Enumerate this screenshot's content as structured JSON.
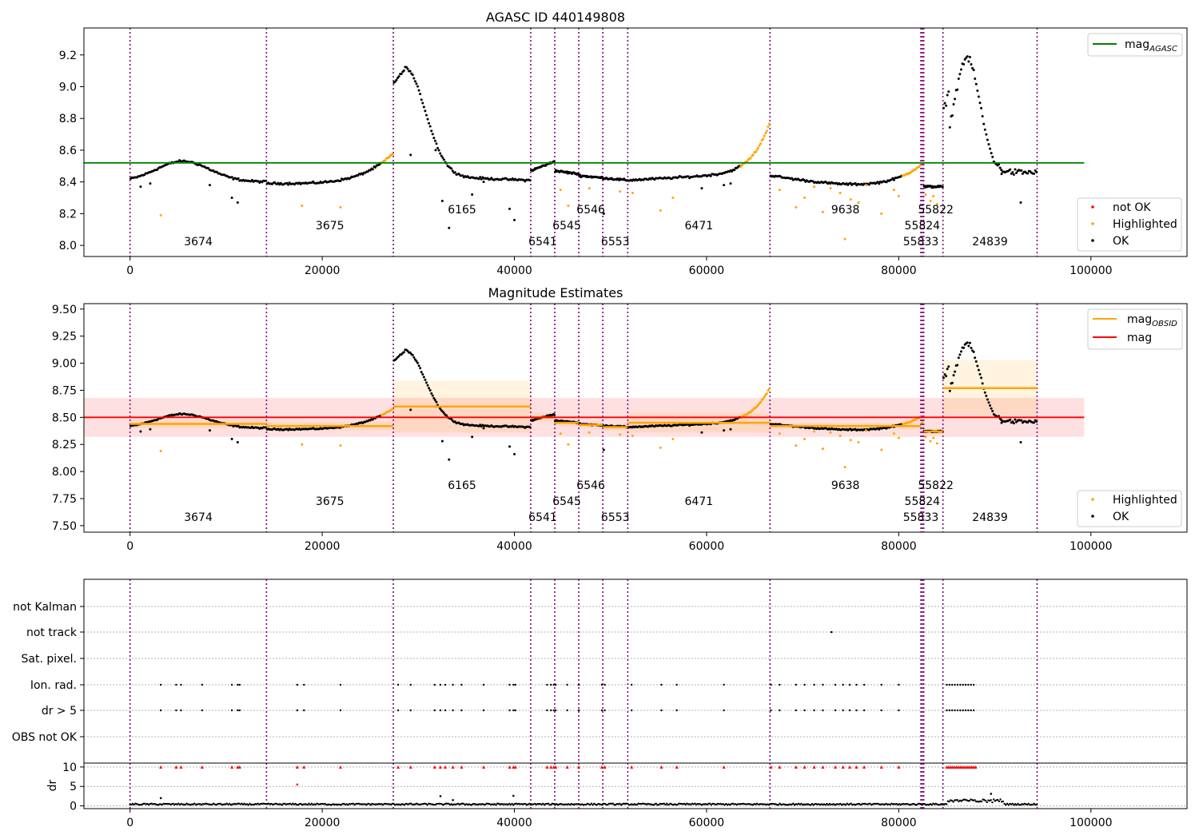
{
  "chart_data": [
    {
      "type": "scatter",
      "title": "AGASC ID 440149808",
      "xlim": [
        -4800,
        110000
      ],
      "ylim": [
        7.93,
        9.37
      ],
      "xticks": [
        0,
        20000,
        40000,
        60000,
        80000,
        100000
      ],
      "yticks": [
        8.0,
        8.2,
        8.4,
        8.6,
        8.8,
        9.0,
        9.2
      ],
      "legend_lines": [
        {
          "name": "mag_AGASC",
          "label": "mag",
          "sub": "AGASC",
          "color": "#008000"
        }
      ],
      "legend_points": [
        {
          "name": "not OK",
          "color": "#ff0000"
        },
        {
          "name": "Highlighted",
          "color": "#ffa500"
        },
        {
          "name": "OK",
          "color": "#000000"
        }
      ],
      "hline": {
        "y": 8.52,
        "x": [
          -4800,
          99300
        ],
        "color": "#008000"
      }
    },
    {
      "type": "scatter",
      "title": "Magnitude Estimates",
      "xlim": [
        -4800,
        110000
      ],
      "ylim": [
        7.44,
        9.55
      ],
      "xticks": [
        0,
        20000,
        40000,
        60000,
        80000,
        100000
      ],
      "yticks": [
        7.5,
        7.75,
        8.0,
        8.25,
        8.5,
        8.75,
        9.0,
        9.25,
        9.5
      ],
      "legend_lines": [
        {
          "name": "mag_OBSID",
          "label": "mag",
          "sub": "OBSID",
          "color": "#ffa500"
        },
        {
          "name": "mag",
          "label": "mag",
          "sub": "",
          "color": "#ff0000"
        }
      ],
      "legend_points": [
        {
          "name": "Highlighted",
          "color": "#ffa500"
        },
        {
          "name": "OK",
          "color": "#000000"
        }
      ],
      "mag": {
        "value": 8.5,
        "band": [
          8.32,
          8.68
        ],
        "x": [
          -4800,
          99300
        ]
      },
      "obsid_levels": [
        {
          "x": [
            0,
            14200
          ],
          "mag": 8.44,
          "band": [
            8.4,
            8.48
          ]
        },
        {
          "x": [
            14200,
            27400
          ],
          "mag": 8.42,
          "band": [
            8.38,
            8.46
          ]
        },
        {
          "x": [
            27400,
            41700
          ],
          "mag": 8.6,
          "band": [
            8.36,
            8.84
          ]
        },
        {
          "x": [
            41700,
            44200
          ],
          "mag": 8.5,
          "band": [
            8.46,
            8.54
          ]
        },
        {
          "x": [
            44200,
            46700
          ],
          "mag": 8.45,
          "band": [
            8.42,
            8.48
          ]
        },
        {
          "x": [
            46700,
            49200
          ],
          "mag": 8.43,
          "band": [
            8.4,
            8.46
          ]
        },
        {
          "x": [
            49200,
            51800
          ],
          "mag": 8.41,
          "band": [
            8.38,
            8.44
          ]
        },
        {
          "x": [
            51800,
            66600
          ],
          "mag": 8.45,
          "band": [
            8.36,
            8.54
          ]
        },
        {
          "x": [
            66600,
            82300
          ],
          "mag": 8.42,
          "band": [
            8.39,
            8.45
          ]
        },
        {
          "x": [
            82300,
            82600
          ],
          "mag": 8.45,
          "band": [
            8.42,
            8.48
          ]
        },
        {
          "x": [
            82600,
            84600
          ],
          "mag": 8.37,
          "band": [
            8.34,
            8.4
          ]
        },
        {
          "x": [
            84600,
            94400
          ],
          "mag": 8.77,
          "band": [
            8.52,
            9.03
          ]
        }
      ]
    },
    {
      "type": "scatter",
      "xlim": [
        -4800,
        110000
      ],
      "xticks": [
        0,
        20000,
        40000,
        60000,
        80000,
        100000
      ],
      "flag_labels": [
        "not Kalman",
        "not track",
        "Sat. pixel.",
        "Ion. rad.",
        "dr > 5",
        "OBS not OK"
      ],
      "ylabel": "dr",
      "dr_ylim": [
        -0.7,
        11
      ],
      "dr_yticks": [
        0,
        5,
        10
      ]
    }
  ],
  "obsids": [
    {
      "x": 0,
      "label": "3674",
      "row": 0
    },
    {
      "x": 14200,
      "label": "3675",
      "row": 1
    },
    {
      "x": 27400,
      "label": "6165",
      "row": 2
    },
    {
      "x": 41700,
      "label": "6541",
      "row": 0
    },
    {
      "x": 44200,
      "label": "6545",
      "row": 1
    },
    {
      "x": 46700,
      "label": "6546",
      "row": 2
    },
    {
      "x": 49200,
      "label": "6553",
      "row": 0
    },
    {
      "x": 51800,
      "label": "6471",
      "row": 1
    },
    {
      "x": 66600,
      "label": "9638",
      "row": 2
    },
    {
      "x": 82300,
      "label": "55833",
      "row": 0
    },
    {
      "x": 82450,
      "label": "55824",
      "row": 1
    },
    {
      "x": 82600,
      "label": "55822",
      "row": 2
    },
    {
      "x": 84600,
      "label": "24839",
      "row": 0
    }
  ],
  "obsid_end": 94400,
  "colors": {
    "ok": "#000000",
    "highlighted": "#ffa500",
    "not_ok": "#ff0000",
    "obsid_line": "#800080"
  }
}
